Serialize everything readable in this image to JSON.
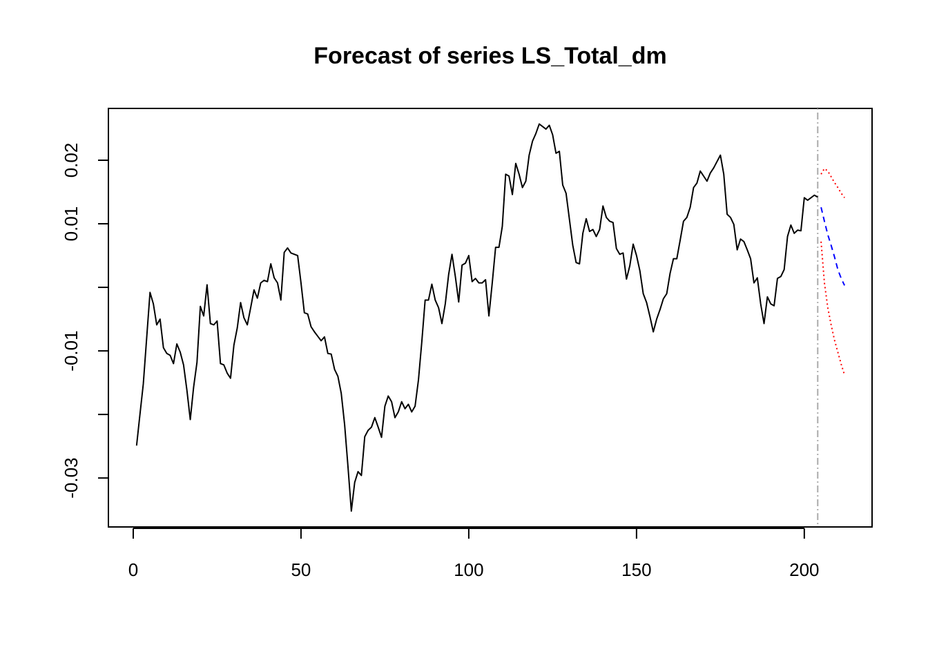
{
  "chart_data": {
    "type": "line",
    "title": "Forecast of series LS_Total_dm",
    "xlim": [
      -7.4,
      220.2
    ],
    "ylim": [
      -0.0377,
      0.02815
    ],
    "xticks": [
      0,
      50,
      100,
      150,
      200
    ],
    "yticks": [
      {
        "value": -0.03,
        "label": "-0.03"
      },
      {
        "value": -0.02,
        "label": null
      },
      {
        "value": -0.01,
        "label": "-0.01"
      },
      {
        "value": 0,
        "label": null
      },
      {
        "value": 0.01,
        "label": "0.01"
      },
      {
        "value": 0.02,
        "label": "0.02"
      }
    ],
    "vline": {
      "x": 204,
      "color": "#aaaaaa",
      "linestyle": "dotdash"
    },
    "series": [
      {
        "color": "#000000",
        "linestyle": "solid",
        "x": [
          1,
          2,
          3,
          4,
          5,
          6,
          7,
          8,
          9,
          10,
          11,
          12,
          13,
          14,
          15,
          16,
          17,
          18,
          19,
          20,
          21,
          22,
          23,
          24,
          25,
          26,
          27,
          28,
          29,
          30,
          31,
          32,
          33,
          34,
          35,
          36,
          37,
          38,
          39,
          40,
          41,
          42,
          43,
          44,
          45,
          46,
          47,
          48,
          49,
          50,
          51,
          52,
          53,
          54,
          55,
          56,
          57,
          58,
          59,
          60,
          61,
          62,
          63,
          64,
          65,
          66,
          67,
          68,
          69,
          70,
          71,
          72,
          73,
          74,
          75,
          76,
          77,
          78,
          79,
          80,
          81,
          82,
          83,
          84,
          85,
          86,
          87,
          88,
          89,
          90,
          91,
          92,
          93,
          94,
          95,
          96,
          97,
          98,
          99,
          100,
          101,
          102,
          103,
          104,
          105,
          106,
          107,
          108,
          109,
          110,
          111,
          112,
          113,
          114,
          115,
          116,
          117,
          118,
          119,
          120,
          121,
          122,
          123,
          124,
          125,
          126,
          127,
          128,
          129,
          130,
          131,
          132,
          133,
          134,
          135,
          136,
          137,
          138,
          139,
          140,
          141,
          142,
          143,
          144,
          145,
          146,
          147,
          148,
          149,
          150,
          151,
          152,
          153,
          154,
          155,
          156,
          157,
          158,
          159,
          160,
          161,
          162,
          163,
          164,
          165,
          166,
          167,
          168,
          169,
          170,
          171,
          172,
          173,
          174,
          175,
          176,
          177,
          178,
          179,
          180,
          181,
          182,
          183,
          184,
          185,
          186,
          187,
          188,
          189,
          190,
          191,
          192,
          193,
          194,
          195,
          196,
          197,
          198,
          199,
          200,
          201,
          202,
          203,
          204
        ],
        "values": [
          -0.0249,
          -0.02,
          -0.0152,
          -0.008,
          -0.0008,
          -0.0026,
          -0.0059,
          -0.005,
          -0.0095,
          -0.0104,
          -0.0107,
          -0.012,
          -0.0089,
          -0.0102,
          -0.0122,
          -0.0162,
          -0.0208,
          -0.0157,
          -0.0118,
          -0.003,
          -0.0045,
          0.0004,
          -0.0057,
          -0.0059,
          -0.0053,
          -0.012,
          -0.0122,
          -0.0135,
          -0.0143,
          -0.0091,
          -0.0064,
          -0.0024,
          -0.0048,
          -0.0059,
          -0.0032,
          -0.0004,
          -0.0017,
          0.0007,
          0.0011,
          0.0009,
          0.0037,
          0.0015,
          0.0007,
          -0.002,
          0.0055,
          0.0062,
          0.0054,
          0.0052,
          0.005,
          0.0007,
          -0.004,
          -0.0042,
          -0.0062,
          -0.007,
          -0.0077,
          -0.0084,
          -0.0078,
          -0.0104,
          -0.0105,
          -0.0129,
          -0.014,
          -0.0167,
          -0.0216,
          -0.0282,
          -0.0352,
          -0.0307,
          -0.029,
          -0.0296,
          -0.0235,
          -0.0225,
          -0.022,
          -0.0205,
          -0.022,
          -0.0236,
          -0.0187,
          -0.0171,
          -0.018,
          -0.0205,
          -0.0196,
          -0.018,
          -0.0191,
          -0.0184,
          -0.0196,
          -0.0187,
          -0.0146,
          -0.0086,
          -0.002,
          -0.002,
          0.0005,
          -0.002,
          -0.0032,
          -0.0057,
          -0.0026,
          0.002,
          0.0052,
          0.0017,
          -0.0023,
          0.0035,
          0.0038,
          0.005,
          0.0009,
          0.0014,
          0.0007,
          0.0007,
          0.0012,
          -0.0045,
          0.0007,
          0.0063,
          0.0063,
          0.0096,
          0.0178,
          0.0175,
          0.0146,
          0.0195,
          0.0178,
          0.0157,
          0.0167,
          0.0208,
          0.023,
          0.0242,
          0.0257,
          0.0253,
          0.0249,
          0.0255,
          0.024,
          0.0211,
          0.0214,
          0.0161,
          0.0148,
          0.0107,
          0.0066,
          0.0039,
          0.0037,
          0.0085,
          0.0108,
          0.0088,
          0.0091,
          0.008,
          0.0091,
          0.0128,
          0.011,
          0.0104,
          0.0102,
          0.0061,
          0.0052,
          0.0054,
          0.0013,
          0.0034,
          0.0068,
          0.005,
          0.0026,
          -0.001,
          -0.0024,
          -0.0046,
          -0.007,
          -0.005,
          -0.0035,
          -0.0018,
          -0.001,
          0.0022,
          0.0045,
          0.0045,
          0.0074,
          0.0104,
          0.011,
          0.0126,
          0.0157,
          0.0164,
          0.0183,
          0.0175,
          0.0167,
          0.018,
          0.0188,
          0.0198,
          0.0208,
          0.0178,
          0.0115,
          0.011,
          0.0099,
          0.0059,
          0.0076,
          0.0072,
          0.0059,
          0.0045,
          0.0007,
          0.0015,
          -0.0026,
          -0.0057,
          -0.0015,
          -0.0026,
          -0.0029,
          0.0014,
          0.0017,
          0.0028,
          0.008,
          0.0098,
          0.0085,
          0.009,
          0.0089,
          0.0141,
          0.0137,
          0.0141,
          0.0145,
          0.0142
        ]
      },
      {
        "color": "#0000ff",
        "linestyle": "dashed",
        "x": [
          205,
          206,
          207,
          208,
          209,
          210,
          211,
          212
        ],
        "values": [
          0.0126,
          0.0104,
          0.0083,
          0.0066,
          0.0048,
          0.0028,
          0.0014,
          0.0003
        ]
      },
      {
        "color": "#ff0000",
        "linestyle": "dotted",
        "x": [
          205,
          206,
          207,
          208,
          209,
          210,
          211,
          212
        ],
        "values": [
          0.0178,
          0.0187,
          0.0183,
          0.0174,
          0.0165,
          0.0157,
          0.0148,
          0.0141
        ]
      },
      {
        "color": "#ff0000",
        "linestyle": "dotted",
        "x": [
          205,
          206,
          207,
          208,
          209,
          210,
          211,
          212
        ],
        "values": [
          0.0072,
          0.0007,
          -0.0032,
          -0.0059,
          -0.0083,
          -0.0102,
          -0.0121,
          -0.0138
        ]
      }
    ]
  }
}
